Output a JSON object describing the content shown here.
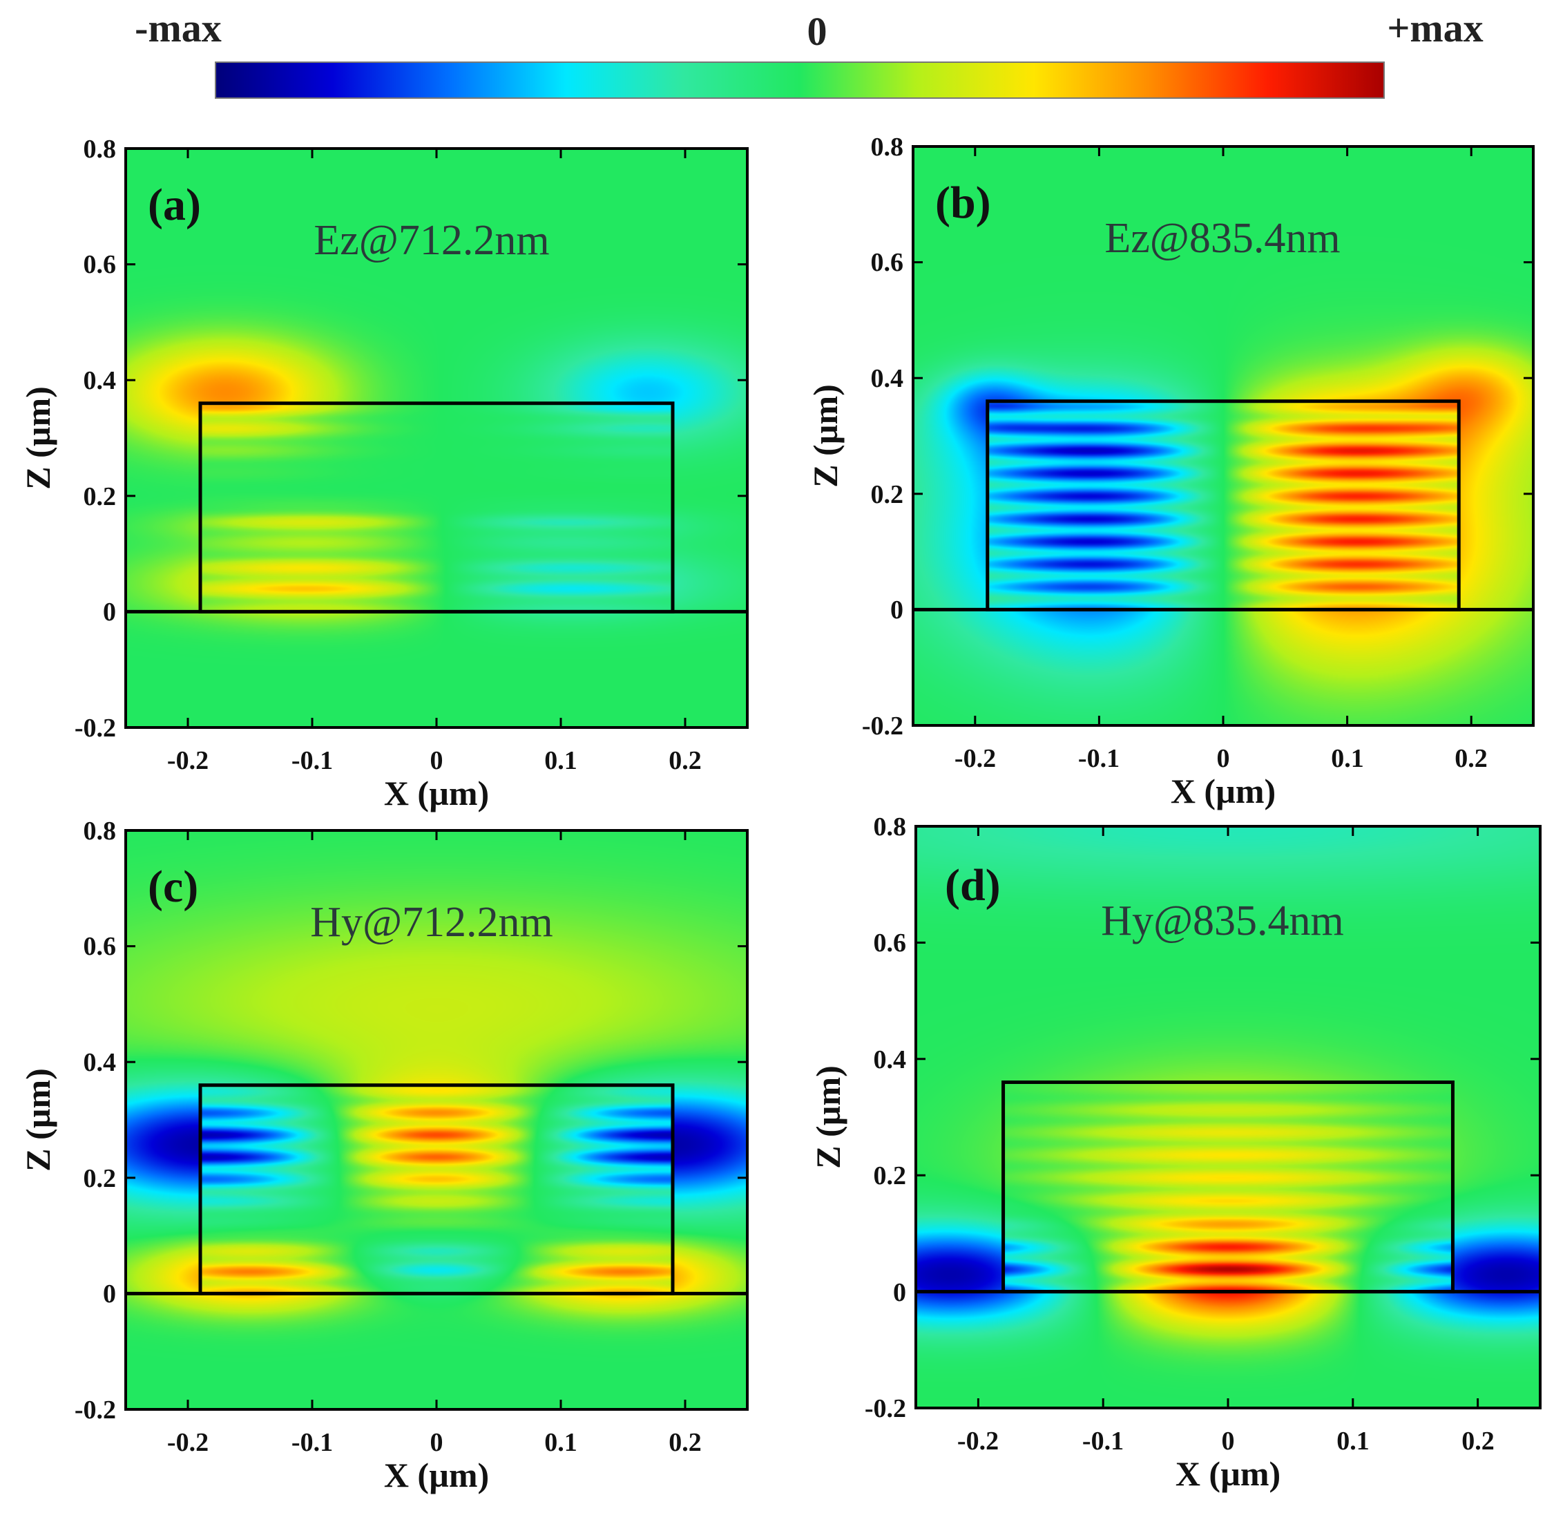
{
  "colorbar": {
    "min_label": "-max",
    "mid_label": "0",
    "max_label": "+max",
    "colormap": [
      "#00007a",
      "#0000d8",
      "#0070ff",
      "#00e8ff",
      "#30e8a0",
      "#22e860",
      "#b4f01a",
      "#ffe600",
      "#ff8c00",
      "#ff1e00",
      "#a80000"
    ]
  },
  "chart_data": [
    {
      "type": "heatmap",
      "panel_label": "(a)",
      "title": "Ez@712.2nm",
      "xlabel": "X (µm)",
      "ylabel": "Z (µm)",
      "xlim": [
        -0.25,
        0.25
      ],
      "ylim": [
        -0.2,
        0.8
      ],
      "xticks": [
        "-0.2",
        "-0.1",
        "0",
        "0.1",
        "0.2"
      ],
      "yticks": [
        "-0.2",
        "0",
        "0.2",
        "0.4",
        "0.6",
        "0.8"
      ],
      "structure": {
        "x": [
          -0.19,
          0.19
        ],
        "z": [
          0,
          0.36
        ],
        "substrate_top": 0
      },
      "field_features": [
        {
          "x": -0.17,
          "z": 0.38,
          "value": 0.6,
          "sx": 0.06,
          "sz": 0.06
        },
        {
          "x": 0.17,
          "z": 0.38,
          "value": -0.45,
          "sx": 0.06,
          "sz": 0.06
        },
        {
          "x": -0.1,
          "z": 0.05,
          "value": 0.5,
          "sx": 0.08,
          "sz": 0.04
        },
        {
          "x": 0.1,
          "z": 0.05,
          "value": -0.4,
          "sx": 0.08,
          "sz": 0.04
        },
        {
          "x": -0.1,
          "z": 0.15,
          "value": 0.3,
          "sx": 0.07,
          "sz": 0.02
        },
        {
          "x": 0.1,
          "z": 0.15,
          "value": -0.25,
          "sx": 0.07,
          "sz": 0.02
        }
      ]
    },
    {
      "type": "heatmap",
      "panel_label": "(b)",
      "title": "Ez@835.4nm",
      "xlabel": "X (µm)",
      "ylabel": "Z (µm)",
      "xlim": [
        -0.25,
        0.25
      ],
      "ylim": [
        -0.2,
        0.8
      ],
      "xticks": [
        "-0.2",
        "-0.1",
        "0",
        "0.1",
        "0.2"
      ],
      "yticks": [
        "-0.2",
        "0",
        "0.2",
        "0.4",
        "0.6",
        "0.8"
      ],
      "structure": {
        "x": [
          -0.19,
          0.19
        ],
        "z": [
          0,
          0.36
        ],
        "substrate_top": 0
      },
      "field_features": [
        {
          "x": -0.09,
          "z": 0.12,
          "value": -0.9,
          "sx": 0.09,
          "sz": 0.14
        },
        {
          "x": 0.09,
          "z": 0.12,
          "value": 0.9,
          "sx": 0.09,
          "sz": 0.14
        },
        {
          "x": -0.09,
          "z": 0.3,
          "value": -0.5,
          "sx": 0.09,
          "sz": 0.06
        },
        {
          "x": 0.09,
          "z": 0.3,
          "value": 0.5,
          "sx": 0.09,
          "sz": 0.06
        },
        {
          "x": 0.2,
          "z": 0.38,
          "value": 0.45,
          "sx": 0.04,
          "sz": 0.05
        },
        {
          "x": -0.19,
          "z": 0.36,
          "value": -0.4,
          "sx": 0.03,
          "sz": 0.04
        }
      ]
    },
    {
      "type": "heatmap",
      "panel_label": "(c)",
      "title": "Hy@712.2nm",
      "xlabel": "X (µm)",
      "ylabel": "Z (µm)",
      "xlim": [
        -0.25,
        0.25
      ],
      "ylim": [
        -0.2,
        0.8
      ],
      "xticks": [
        "-0.2",
        "-0.1",
        "0",
        "0.1",
        "0.2"
      ],
      "yticks": [
        "-0.2",
        "0",
        "0.2",
        "0.4",
        "0.6",
        "0.8"
      ],
      "structure": {
        "x": [
          -0.19,
          0.19
        ],
        "z": [
          0,
          0.36
        ],
        "substrate_top": 0
      },
      "field_features": [
        {
          "x": 0.0,
          "z": 0.26,
          "value": 0.95,
          "sx": 0.07,
          "sz": 0.07
        },
        {
          "x": -0.18,
          "z": 0.26,
          "value": -0.95,
          "sx": 0.09,
          "sz": 0.07
        },
        {
          "x": 0.18,
          "z": 0.26,
          "value": -0.95,
          "sx": 0.09,
          "sz": 0.07
        },
        {
          "x": -0.15,
          "z": 0.03,
          "value": 0.65,
          "sx": 0.06,
          "sz": 0.04
        },
        {
          "x": 0.15,
          "z": 0.03,
          "value": 0.65,
          "sx": 0.06,
          "sz": 0.04
        },
        {
          "x": 0.0,
          "z": 0.05,
          "value": -0.45,
          "sx": 0.05,
          "sz": 0.03
        },
        {
          "x": 0.0,
          "z": 0.5,
          "value": 0.25,
          "sx": 0.2,
          "sz": 0.12
        }
      ]
    },
    {
      "type": "heatmap",
      "panel_label": "(d)",
      "title": "Hy@835.4nm",
      "xlabel": "X (µm)",
      "ylabel": "Z (µm)",
      "xlim": [
        -0.25,
        0.25
      ],
      "ylim": [
        -0.2,
        0.8
      ],
      "xticks": [
        "-0.2",
        "-0.1",
        "0",
        "0.1",
        "0.2"
      ],
      "yticks": [
        "-0.2",
        "0",
        "0.2",
        "0.4",
        "0.6",
        "0.8"
      ],
      "structure": {
        "x": [
          -0.18,
          0.18
        ],
        "z": [
          0,
          0.36
        ],
        "substrate_top": 0
      },
      "field_features": [
        {
          "x": 0.0,
          "z": 0.03,
          "value": 0.95,
          "sx": 0.07,
          "sz": 0.06
        },
        {
          "x": 0.0,
          "z": 0.22,
          "value": 0.4,
          "sx": 0.1,
          "sz": 0.1
        },
        {
          "x": -0.22,
          "z": 0.03,
          "value": -0.9,
          "sx": 0.08,
          "sz": 0.06
        },
        {
          "x": 0.22,
          "z": 0.03,
          "value": -0.9,
          "sx": 0.08,
          "sz": 0.06
        },
        {
          "x": 0.0,
          "z": 0.8,
          "value": -0.25,
          "sx": 0.3,
          "sz": 0.08
        }
      ]
    }
  ]
}
